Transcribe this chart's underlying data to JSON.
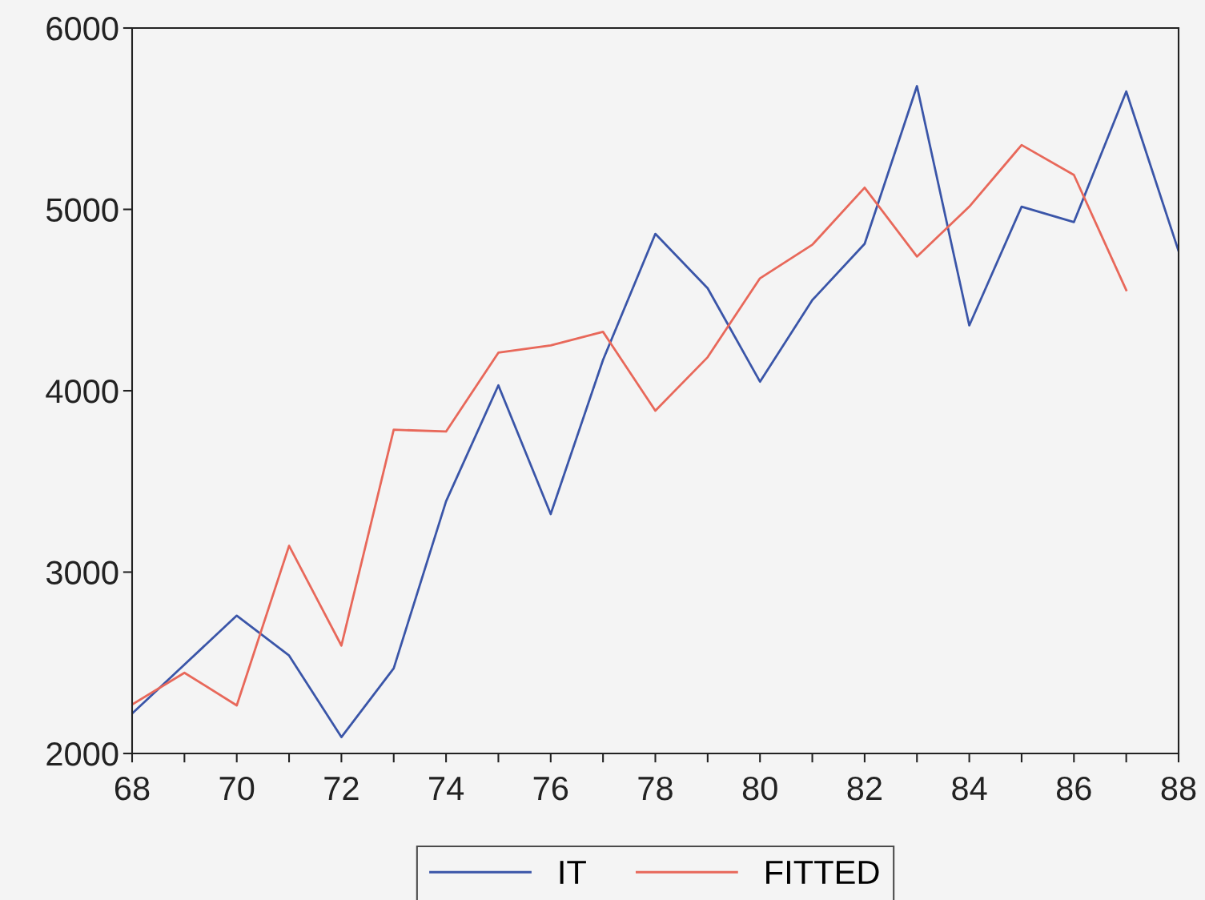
{
  "chart_data": {
    "type": "line",
    "x": [
      68,
      69,
      70,
      71,
      72,
      73,
      74,
      75,
      76,
      77,
      78,
      79,
      80,
      81,
      82,
      83,
      84,
      85,
      86,
      87,
      88
    ],
    "series": [
      {
        "name": "IT",
        "color": "#3a55a8",
        "values": [
          2220,
          2490,
          2760,
          2540,
          2090,
          2470,
          3390,
          4030,
          3320,
          4170,
          4865,
          4565,
          4050,
          4500,
          4810,
          5680,
          4360,
          5015,
          4930,
          5650,
          4770
        ]
      },
      {
        "name": "FITTED",
        "color": "#e8685a",
        "values": [
          2270,
          2445,
          2265,
          3145,
          2595,
          3785,
          3775,
          4210,
          4250,
          4325,
          3890,
          4185,
          4620,
          4805,
          5120,
          4740,
          5015,
          5355,
          5190,
          4555,
          null
        ]
      }
    ],
    "xlim": [
      68,
      88
    ],
    "xticks": [
      68,
      {
        "value": 69,
        "label": null
      },
      70,
      {
        "value": 71,
        "label": null
      },
      72,
      {
        "value": 73,
        "label": null
      },
      74,
      {
        "value": 75,
        "label": null
      },
      76,
      {
        "value": 77,
        "label": null
      },
      78,
      {
        "value": 79,
        "label": null
      },
      80,
      {
        "value": 81,
        "label": null
      },
      82,
      {
        "value": 83,
        "label": null
      },
      84,
      {
        "value": 85,
        "label": null
      },
      86,
      {
        "value": 87,
        "label": null
      },
      88
    ],
    "ylim": [
      2000,
      6000
    ],
    "yticks": [
      2000,
      3000,
      4000,
      5000,
      6000
    ],
    "grid": false,
    "legend": "bottom",
    "marker": "none",
    "line_style": "solid"
  }
}
